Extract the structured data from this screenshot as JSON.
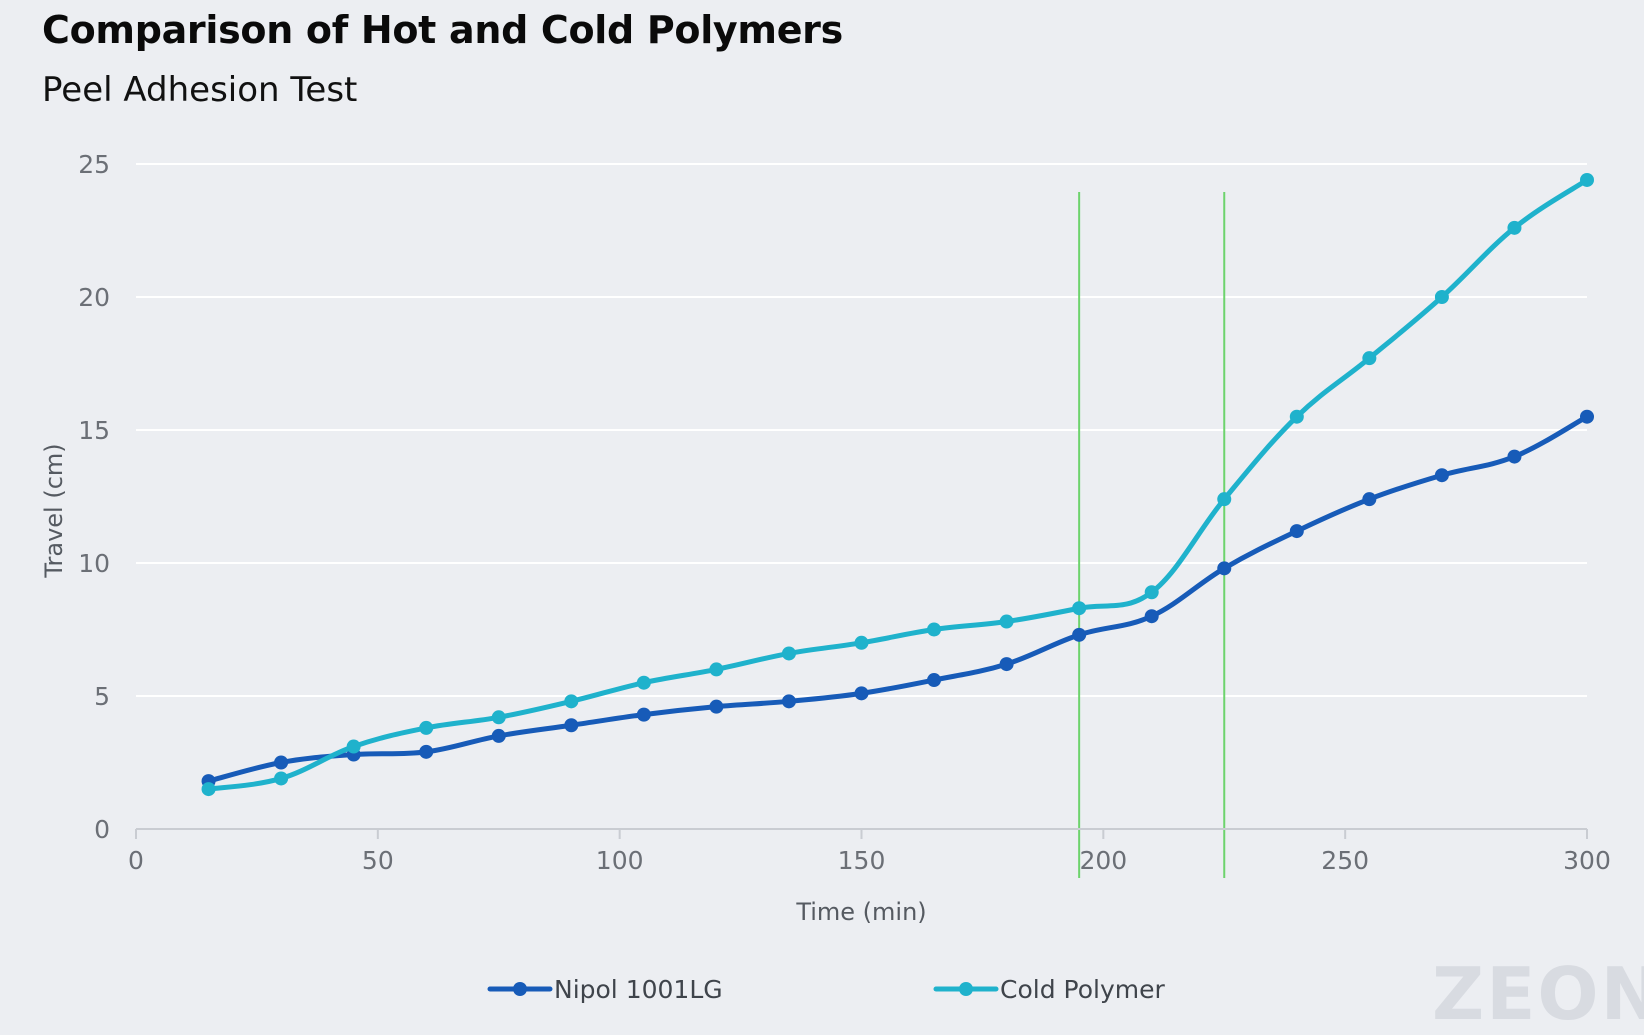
{
  "chart_data": {
    "type": "line",
    "title": "Comparison of Hot and Cold Polymers",
    "subtitle": "Peel Adhesion Test",
    "xlabel": "Time (min)",
    "ylabel": "Travel (cm)",
    "xlim": [
      0,
      300
    ],
    "ylim": [
      0,
      25
    ],
    "x_ticks": [
      0,
      50,
      100,
      150,
      200,
      250,
      300
    ],
    "y_ticks": [
      0,
      5,
      10,
      15,
      20,
      25
    ],
    "grid": "horizontal",
    "legend_position": "bottom",
    "reference_lines_x": [
      195,
      225
    ],
    "reference_line_color": "#6dd36d",
    "series": [
      {
        "name": "Nipol 1001LG",
        "color": "#175bb8",
        "x": [
          15,
          30,
          45,
          60,
          75,
          90,
          105,
          120,
          135,
          150,
          165,
          180,
          195,
          210,
          225,
          240,
          255,
          270,
          285,
          300
        ],
        "y": [
          1.8,
          2.5,
          2.8,
          2.9,
          3.5,
          3.9,
          4.3,
          4.6,
          4.8,
          5.1,
          5.6,
          6.2,
          7.3,
          8.0,
          9.8,
          11.2,
          12.4,
          13.3,
          14.0,
          15.5
        ]
      },
      {
        "name": "Cold Polymer",
        "color": "#1fb2cc",
        "x": [
          15,
          30,
          45,
          60,
          75,
          90,
          105,
          120,
          135,
          150,
          165,
          180,
          195,
          210,
          225,
          240,
          255,
          270,
          285,
          300
        ],
        "y": [
          1.5,
          1.9,
          3.1,
          3.8,
          4.2,
          4.8,
          5.5,
          6.0,
          6.6,
          7.0,
          7.5,
          7.8,
          8.3,
          8.9,
          12.4,
          15.5,
          17.7,
          20.0,
          22.6,
          24.4
        ]
      }
    ]
  },
  "watermark": {
    "text": "ZEON"
  }
}
